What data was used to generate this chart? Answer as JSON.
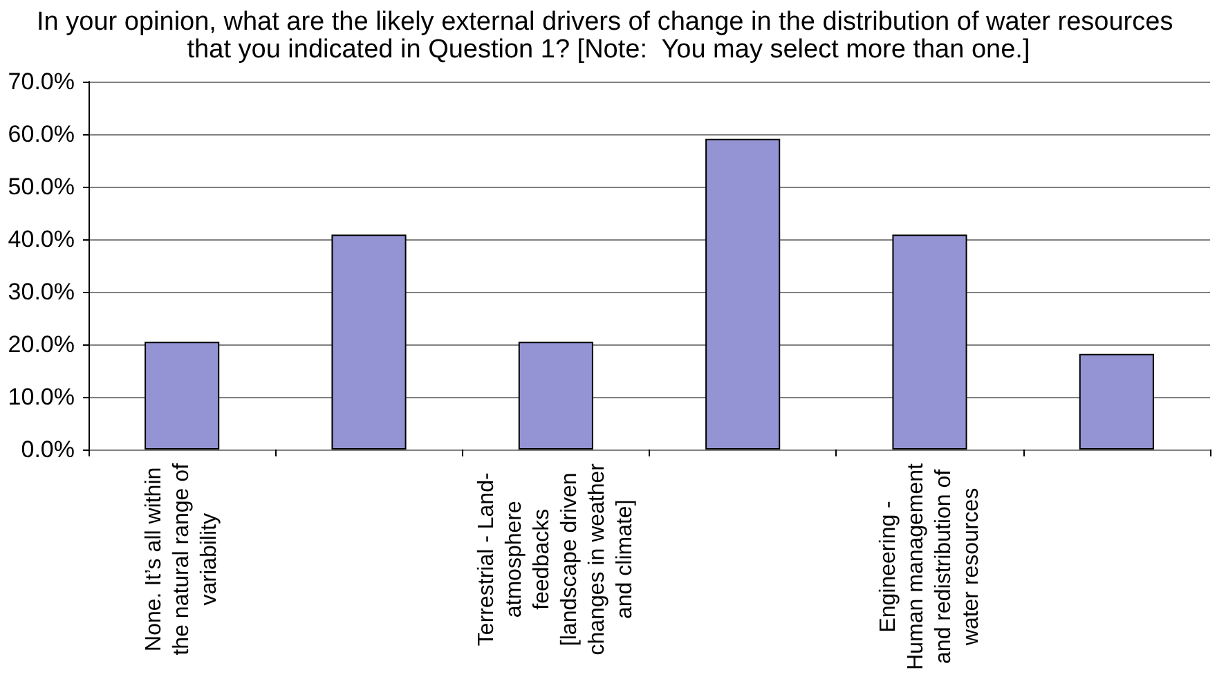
{
  "chart_data": {
    "type": "bar",
    "title": "In your opinion, what are the likely external drivers of change in the distribution of water resources that you indicated in Question 1? [Note:  You may select more than one.]",
    "categories": [
      "None. It’s all within the natural range of variability",
      null,
      "Terrestrial - Land-atmosphere feedbacks [landscape driven changes in weather and climate]",
      null,
      "Engineering - Human management and redistribution of water resources",
      null
    ],
    "values": [
      20.5,
      40.9,
      20.5,
      59.1,
      40.9,
      18.2
    ],
    "color": "#9494d4",
    "ylim": [
      0,
      70
    ],
    "yticks": [
      {
        "value": 0,
        "label": "0.0%"
      },
      {
        "value": 10,
        "label": "10.0%"
      },
      {
        "value": 20,
        "label": "20.0%"
      },
      {
        "value": 30,
        "label": "30.0%"
      },
      {
        "value": 40,
        "label": "40.0%"
      },
      {
        "value": 50,
        "label": "50.0%"
      },
      {
        "value": 60,
        "label": "60.0%"
      },
      {
        "value": 70,
        "label": "70.0%"
      }
    ],
    "grid": "y"
  }
}
